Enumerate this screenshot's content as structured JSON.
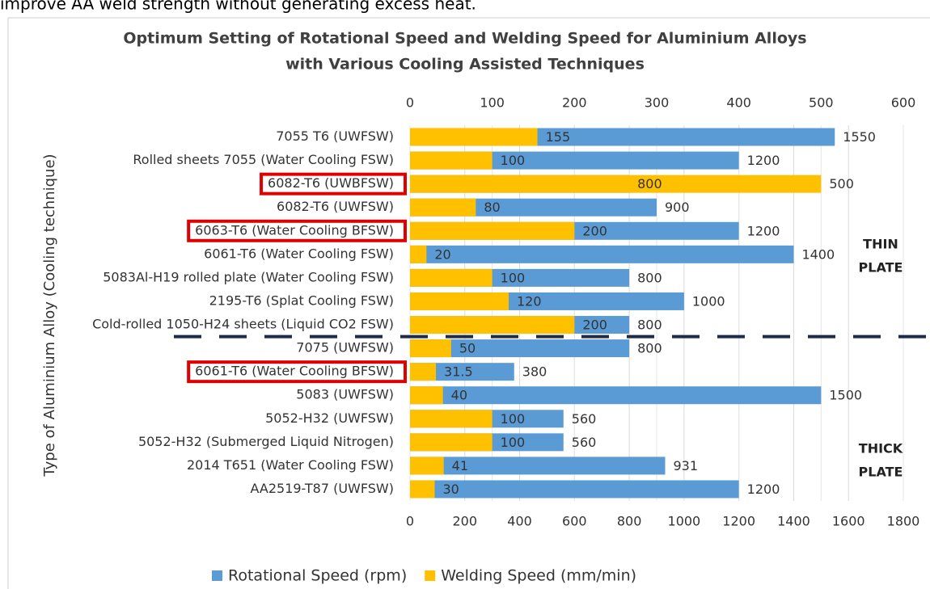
{
  "header_text": "improve AA weld strength without generating excess heat.",
  "chart_data": {
    "type": "hbar",
    "title": [
      "Optimum Setting of Rotational Speed and Welding Speed for Aluminium Alloys",
      "with Various Cooling Assisted Techniques"
    ],
    "y_label": "Type of Aluminium Alloy  (Cooling technique)",
    "categories": [
      "7055 T6 (UWFSW)",
      "Rolled sheets 7055 (Water Cooling FSW)",
      "6082-T6 (UWBFSW)",
      "6082-T6 (UWFSW)",
      "6063-T6 (Water Cooling BFSW)",
      "6061-T6 (Water Cooling FSW)",
      "5083Al-H19 rolled plate (Water Cooling FSW)",
      "2195-T6 (Splat Cooling FSW)",
      "Cold-rolled 1050-H24 sheets (Liquid CO2 FSW)",
      "7075 (UWFSW)",
      "6061-T6 (Water Cooling BFSW)",
      "5083 (UWFSW)",
      "5052-H32 (UWFSW)",
      "5052-H32 (Submerged Liquid Nitrogen)",
      "2014 T651 (Water Cooling FSW)",
      "AA2519-T87 (UWFSW)"
    ],
    "series": [
      {
        "name": "Rotational Speed (rpm)",
        "color": "#5b9bd5",
        "axis": "x",
        "values": [
          1550,
          1200,
          800,
          900,
          1200,
          1400,
          800,
          1000,
          800,
          800,
          380,
          1500,
          560,
          560,
          931,
          1200
        ]
      },
      {
        "name": "Welding Speed (mm/min)",
        "color": "#ffc000",
        "axis": "x2",
        "values": [
          155,
          100,
          500,
          80,
          200,
          20,
          100,
          120,
          200,
          50,
          31.5,
          40,
          100,
          100,
          41,
          30
        ]
      }
    ],
    "xlim": [
      0,
      1800
    ],
    "xticks": [
      0,
      200,
      400,
      600,
      800,
      1000,
      1200,
      1400,
      1600,
      1800
    ],
    "x2lim": [
      0,
      600
    ],
    "x2ticks": [
      0,
      100,
      200,
      300,
      400,
      500,
      600
    ],
    "grid": true,
    "legend": "bottom",
    "highlighted": [
      2,
      4,
      10
    ],
    "highlight_color": "#e00000",
    "divider_after": 8,
    "group_labels": [
      [
        "THIN",
        "PLATE"
      ],
      [
        "THICK",
        "PLATE"
      ]
    ]
  }
}
